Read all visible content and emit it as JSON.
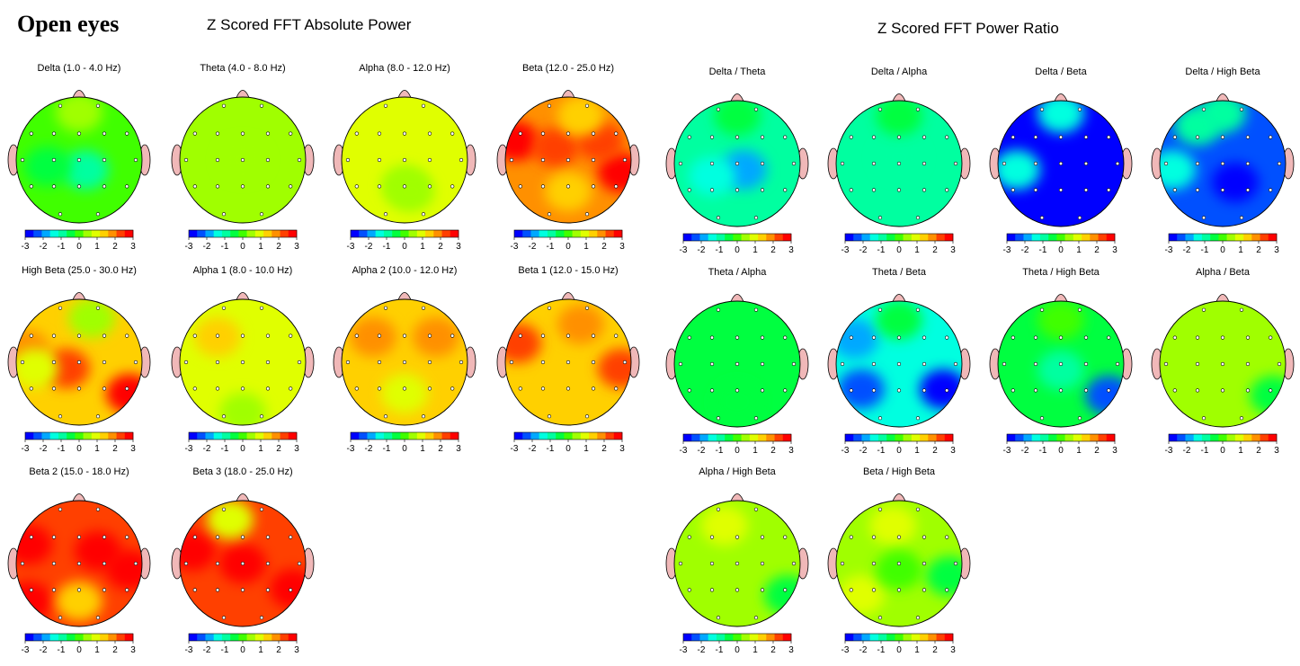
{
  "page_title": "Open eyes",
  "sections": {
    "absolute_power": "Z Scored FFT Absolute Power",
    "power_ratio": "Z Scored FFT Power Ratio"
  },
  "colorbar": {
    "ticks": [
      "-3",
      "-2",
      "-1",
      "0",
      "1",
      "2",
      "3"
    ],
    "colors": [
      "#0000ff",
      "#0050ff",
      "#00a8ff",
      "#00ffe0",
      "#00ffa0",
      "#00ff40",
      "#40ff00",
      "#a0ff00",
      "#e0ff00",
      "#ffd000",
      "#ff9000",
      "#ff4000",
      "#ff0000"
    ]
  },
  "chart_data": [
    {
      "type": "heatmap",
      "title": "Delta (1.0 - 4.0 Hz)",
      "background_z": 0.2,
      "blobs": [
        {
          "x": 0.55,
          "y": 0.58,
          "z": -0.9
        },
        {
          "x": 0.25,
          "y": 0.55,
          "z": -0.5
        },
        {
          "x": 0.5,
          "y": 0.12,
          "z": 0.4
        }
      ]
    },
    {
      "type": "heatmap",
      "title": "Theta (4.0 - 8.0 Hz)",
      "background_z": 0.5,
      "blobs": [
        {
          "x": 0.5,
          "y": 0.5,
          "z": 0.4
        }
      ]
    },
    {
      "type": "heatmap",
      "title": "Alpha (8.0 - 12.0 Hz)",
      "background_z": 1.1,
      "blobs": [
        {
          "x": 0.5,
          "y": 0.7,
          "z": 0.6
        },
        {
          "x": 0.55,
          "y": 0.75,
          "z": 0.3
        }
      ]
    },
    {
      "type": "heatmap",
      "title": "Beta (12.0 - 25.0 Hz)",
      "background_z": 1.7,
      "blobs": [
        {
          "x": 0.08,
          "y": 0.35,
          "z": 3.0
        },
        {
          "x": 0.92,
          "y": 0.6,
          "z": 3.0
        },
        {
          "x": 0.4,
          "y": 0.4,
          "z": 2.4
        },
        {
          "x": 0.75,
          "y": 0.35,
          "z": 2.4
        },
        {
          "x": 0.6,
          "y": 0.15,
          "z": 1.2
        },
        {
          "x": 0.5,
          "y": 0.75,
          "z": 1.3
        }
      ]
    },
    {
      "type": "heatmap",
      "title": "High Beta (25.0 - 30.0 Hz)",
      "background_z": 1.6,
      "blobs": [
        {
          "x": 0.9,
          "y": 0.75,
          "z": 3.0
        },
        {
          "x": 0.4,
          "y": 0.55,
          "z": 2.4
        },
        {
          "x": 0.08,
          "y": 0.4,
          "z": 2.0
        },
        {
          "x": 0.6,
          "y": 0.15,
          "z": 0.6
        },
        {
          "x": 0.15,
          "y": 0.55,
          "z": 1.0
        }
      ]
    },
    {
      "type": "heatmap",
      "title": "Alpha 1 (8.0 - 10.0 Hz)",
      "background_z": 1.1,
      "blobs": [
        {
          "x": 0.5,
          "y": 0.9,
          "z": 0.5
        },
        {
          "x": 0.3,
          "y": 0.3,
          "z": 1.3
        }
      ]
    },
    {
      "type": "heatmap",
      "title": "Alpha 2 (10.0 - 12.0 Hz)",
      "background_z": 1.5,
      "blobs": [
        {
          "x": 0.5,
          "y": 0.75,
          "z": 0.9
        },
        {
          "x": 0.25,
          "y": 0.3,
          "z": 2.0
        },
        {
          "x": 0.75,
          "y": 0.3,
          "z": 1.7
        }
      ]
    },
    {
      "type": "heatmap",
      "title": "Beta 1 (12.0 - 15.0 Hz)",
      "background_z": 1.5,
      "blobs": [
        {
          "x": 0.1,
          "y": 0.35,
          "z": 2.4
        },
        {
          "x": 0.92,
          "y": 0.55,
          "z": 2.4
        },
        {
          "x": 0.6,
          "y": 0.2,
          "z": 1.9
        },
        {
          "x": 0.5,
          "y": 0.75,
          "z": 1.3
        }
      ]
    },
    {
      "type": "heatmap",
      "title": "Beta 2 (15.0 - 18.0 Hz)",
      "background_z": 2.1,
      "blobs": [
        {
          "x": 0.1,
          "y": 0.35,
          "z": 3.0
        },
        {
          "x": 0.9,
          "y": 0.55,
          "z": 3.0
        },
        {
          "x": 0.1,
          "y": 0.8,
          "z": 3.0
        },
        {
          "x": 0.65,
          "y": 0.4,
          "z": 2.6
        },
        {
          "x": 0.5,
          "y": 0.8,
          "z": 1.5
        }
      ]
    },
    {
      "type": "heatmap",
      "title": "Beta 3 (18.0 - 25.0 Hz)",
      "background_z": 2.1,
      "blobs": [
        {
          "x": 0.9,
          "y": 0.7,
          "z": 3.0
        },
        {
          "x": 0.1,
          "y": 0.4,
          "z": 2.9
        },
        {
          "x": 0.5,
          "y": 0.5,
          "z": 2.6
        },
        {
          "x": 0.4,
          "y": 0.15,
          "z": 1.0
        }
      ]
    },
    {
      "type": "heatmap",
      "title": "Delta / Theta",
      "background_z": -1.0,
      "blobs": [
        {
          "x": 0.55,
          "y": 0.55,
          "z": -1.7
        },
        {
          "x": 0.3,
          "y": 0.6,
          "z": -1.5
        },
        {
          "x": 0.5,
          "y": 0.12,
          "z": -0.3
        }
      ]
    },
    {
      "type": "heatmap",
      "title": "Delta / Alpha",
      "background_z": -0.7,
      "blobs": [
        {
          "x": 0.5,
          "y": 0.45,
          "z": -1.0
        },
        {
          "x": 0.5,
          "y": 0.12,
          "z": -0.3
        }
      ]
    },
    {
      "type": "heatmap",
      "title": "Delta / Beta",
      "background_z": -3.0,
      "blobs": [
        {
          "x": 0.5,
          "y": 0.1,
          "z": -1.4
        },
        {
          "x": 0.15,
          "y": 0.55,
          "z": -1.6
        }
      ]
    },
    {
      "type": "heatmap",
      "title": "Delta / High Beta",
      "background_z": -2.3,
      "blobs": [
        {
          "x": 0.6,
          "y": 0.65,
          "z": -3.0
        },
        {
          "x": 0.3,
          "y": 0.2,
          "z": -1.0
        },
        {
          "x": 0.1,
          "y": 0.55,
          "z": -1.2
        },
        {
          "x": 0.5,
          "y": 0.1,
          "z": -0.8
        }
      ]
    },
    {
      "type": "heatmap",
      "title": "Theta / Alpha",
      "background_z": -0.6,
      "blobs": [
        {
          "x": 0.5,
          "y": 0.8,
          "z": -0.3
        }
      ]
    },
    {
      "type": "heatmap",
      "title": "Theta / Beta",
      "background_z": -1.2,
      "blobs": [
        {
          "x": 0.85,
          "y": 0.7,
          "z": -3.0
        },
        {
          "x": 0.2,
          "y": 0.7,
          "z": -2.2
        },
        {
          "x": 0.15,
          "y": 0.3,
          "z": -1.8
        },
        {
          "x": 0.5,
          "y": 0.15,
          "z": -0.5
        }
      ]
    },
    {
      "type": "heatmap",
      "title": "Theta / High Beta",
      "background_z": -0.6,
      "blobs": [
        {
          "x": 0.88,
          "y": 0.75,
          "z": -2.5
        },
        {
          "x": 0.5,
          "y": 0.15,
          "z": 0.1
        },
        {
          "x": 0.5,
          "y": 0.55,
          "z": -1.0
        }
      ]
    },
    {
      "type": "heatmap",
      "title": "Alpha / Beta",
      "background_z": 0.3,
      "blobs": [
        {
          "x": 0.9,
          "y": 0.75,
          "z": -0.5
        }
      ]
    },
    {
      "type": "heatmap",
      "title": "Alpha / High Beta",
      "background_z": 0.3,
      "blobs": [
        {
          "x": 0.9,
          "y": 0.75,
          "z": -0.6
        },
        {
          "x": 0.4,
          "y": 0.2,
          "z": 0.8
        }
      ]
    },
    {
      "type": "heatmap",
      "title": "Beta / High Beta",
      "background_z": 0.4,
      "blobs": [
        {
          "x": 0.45,
          "y": 0.2,
          "z": 0.9
        },
        {
          "x": 0.2,
          "y": 0.75,
          "z": 1.0
        },
        {
          "x": 0.5,
          "y": 0.55,
          "z": -0.2
        },
        {
          "x": 0.9,
          "y": 0.6,
          "z": -0.5
        }
      ]
    }
  ]
}
